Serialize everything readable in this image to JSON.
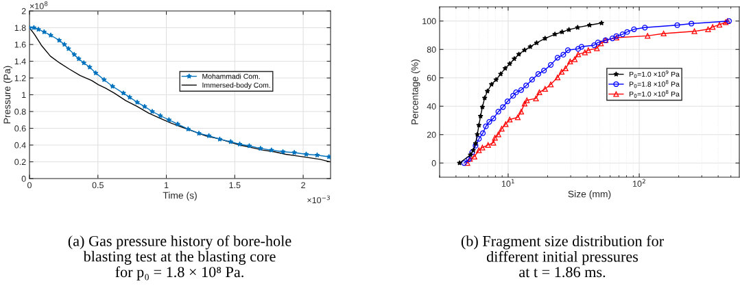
{
  "chart_data": [
    {
      "type": "line",
      "xlabel": "Time (s)",
      "ylabel": "Pressure (Pa)",
      "xlim": [
        0,
        2.2
      ],
      "xticks": [
        0,
        0.5,
        1,
        1.5,
        2
      ],
      "ylim": [
        0,
        2
      ],
      "yticks": [
        0,
        0.2,
        0.4,
        0.6,
        0.8,
        1,
        1.2,
        1.4,
        1.6,
        1.8,
        2
      ],
      "grid": true,
      "legend": "center right",
      "annotations": [
        "(a) Gas pressure history of bore-hole\nblasting test at the blasting core\nfor p₀ = 1.8 × 10⁸ Pa.",
        "×10$^{8}$",
        "×10$^{−3}$"
      ],
      "series": [
        {
          "name": "Mohammadi Com.",
          "color": "#0072bd",
          "marker": "star",
          "line_style": "solid",
          "x": [
            0,
            0.032,
            0.065,
            0.107,
            0.155,
            0.217,
            0.255,
            0.285,
            0.327,
            0.36,
            0.397,
            0.44,
            0.484,
            0.545,
            0.607,
            0.686,
            0.732,
            0.787,
            0.841,
            0.897,
            0.956,
            1.019,
            1.083,
            1.159,
            1.238,
            1.311,
            1.39,
            1.47,
            1.536,
            1.606,
            1.688,
            1.768,
            1.852,
            1.935,
            2.022,
            2.102,
            2.188
          ],
          "values": [
            1.8,
            1.8,
            1.78,
            1.75,
            1.71,
            1.65,
            1.6,
            1.55,
            1.48,
            1.43,
            1.38,
            1.33,
            1.26,
            1.18,
            1.1,
            1.02,
            0.97,
            0.91,
            0.86,
            0.8,
            0.75,
            0.7,
            0.65,
            0.59,
            0.54,
            0.51,
            0.47,
            0.44,
            0.41,
            0.39,
            0.36,
            0.34,
            0.32,
            0.31,
            0.29,
            0.28,
            0.26
          ]
        },
        {
          "name": "Immersed-body Com.",
          "color": "#000000",
          "marker": "none",
          "line_style": "solid",
          "x": [
            0,
            0.037,
            0.087,
            0.153,
            0.22,
            0.287,
            0.37,
            0.454,
            0.504,
            0.554,
            0.62,
            0.704,
            0.787,
            0.871,
            0.954,
            1.037,
            1.121,
            1.204,
            1.288,
            1.371,
            1.455,
            1.538,
            1.621,
            1.705,
            1.788,
            1.872,
            1.955,
            2.039,
            2.122,
            2.197
          ],
          "values": [
            1.8,
            1.72,
            1.59,
            1.46,
            1.38,
            1.31,
            1.23,
            1.17,
            1.12,
            1.08,
            1.02,
            0.93,
            0.86,
            0.78,
            0.72,
            0.66,
            0.61,
            0.56,
            0.51,
            0.48,
            0.44,
            0.4,
            0.37,
            0.34,
            0.32,
            0.29,
            0.27,
            0.25,
            0.23,
            0.2
          ]
        }
      ]
    },
    {
      "type": "line",
      "xlabel": "Size (mm)",
      "ylabel": "Percentage (%)",
      "log": "x",
      "xlim": [
        3,
        580
      ],
      "xticks": [
        {
          "value": 10,
          "label": "10$^{1}$"
        },
        {
          "value": 100,
          "label": "10$^{2}$"
        }
      ],
      "ylim": [
        -10,
        110
      ],
      "yticks": [
        0,
        20,
        40,
        60,
        80,
        100
      ],
      "grid": true,
      "legend": "center right",
      "annotations": [
        "(b) Fragment size distribution for\ndifferent initial pressures\nat t = 1.86 ms."
      ],
      "series": [
        {
          "name": "P$_{0}$=1.0 ×10$^{9}$ Pa",
          "color": "#000000",
          "marker": "star",
          "line_style": "solid",
          "x": [
            4.26,
            5.16,
            5.42,
            5.64,
            5.82,
            5.98,
            6.16,
            6.36,
            6.62,
            6.95,
            7.47,
            8.09,
            8.77,
            9.49,
            10.28,
            11.14,
            12.07,
            13.34,
            14.75,
            16.49,
            19.13,
            22.74,
            25.8,
            29.1,
            33.9,
            41.8,
            51.6
          ],
          "values": [
            0,
            5.8,
            9,
            13.8,
            20.2,
            26.6,
            33,
            39.4,
            45.8,
            50.6,
            55.4,
            58.7,
            62.7,
            66.7,
            69.9,
            73.4,
            76.6,
            79.5,
            81.9,
            84.6,
            87.8,
            90.7,
            92.3,
            93.9,
            95.5,
            97.1,
            98.6
          ]
        },
        {
          "name": "P$_{0}$=1.8 ×10$^{8}$ Pa",
          "color": "#0000ff",
          "marker": "circle",
          "line_style": "solid",
          "x": [
            4.61,
            5.0,
            5.31,
            5.64,
            5.98,
            6.41,
            6.76,
            7.18,
            7.71,
            8.42,
            9.12,
            9.88,
            10.91,
            11.5,
            12.57,
            13.72,
            15.23,
            16.98,
            18.76,
            21.14,
            23.82,
            26.35,
            28.56,
            34.2,
            36.3,
            45.3,
            48.4,
            55.3,
            62.4,
            67,
            74.6,
            80.9,
            91.2,
            110.4,
            195,
            250,
            484
          ],
          "values": [
            0,
            2.6,
            7.4,
            12.2,
            17,
            21,
            25.8,
            29,
            31.4,
            36.2,
            39.4,
            43.4,
            47.4,
            49.8,
            51.4,
            54.6,
            58.7,
            62.7,
            65.1,
            69.1,
            74.2,
            76.3,
            79.5,
            80.4,
            81.9,
            83,
            84.9,
            86.5,
            87.8,
            89.4,
            90.7,
            92.3,
            94.2,
            95.4,
            97.1,
            98.2,
            100
          ]
        },
        {
          "name": "P$_{0}$=1.0 ×10$^{8}$ Pa",
          "color": "#ff0000",
          "marker": "triangle",
          "line_style": "solid",
          "x": [
            4.89,
            5.11,
            5.53,
            5.98,
            6.36,
            7.03,
            7.71,
            7.93,
            8.42,
            8.93,
            9.57,
            10.28,
            11.83,
            12.57,
            13.34,
            13.9,
            16.3,
            17.3,
            19.13,
            21.14,
            23.82,
            25.6,
            27.4,
            29.7,
            32.2,
            34.2,
            38.5,
            40.9,
            47.5,
            51,
            55.3,
            67,
            115.8,
            153.5,
            263.6,
            335,
            363,
            409,
            456,
            471
          ],
          "values": [
            0,
            2.9,
            4.5,
            9,
            10.9,
            12.7,
            14.3,
            17.8,
            20.2,
            24.2,
            27.4,
            30.6,
            32.2,
            36.2,
            41.8,
            44.2,
            45.5,
            49.8,
            52.2,
            55.4,
            60.3,
            64.3,
            66.7,
            71.5,
            73.1,
            76.6,
            77.9,
            79.5,
            80.8,
            84.3,
            86.5,
            88.3,
            89.6,
            91.2,
            92.8,
            94.2,
            95.8,
            97.4,
            99.2,
            100
          ]
        }
      ]
    }
  ]
}
